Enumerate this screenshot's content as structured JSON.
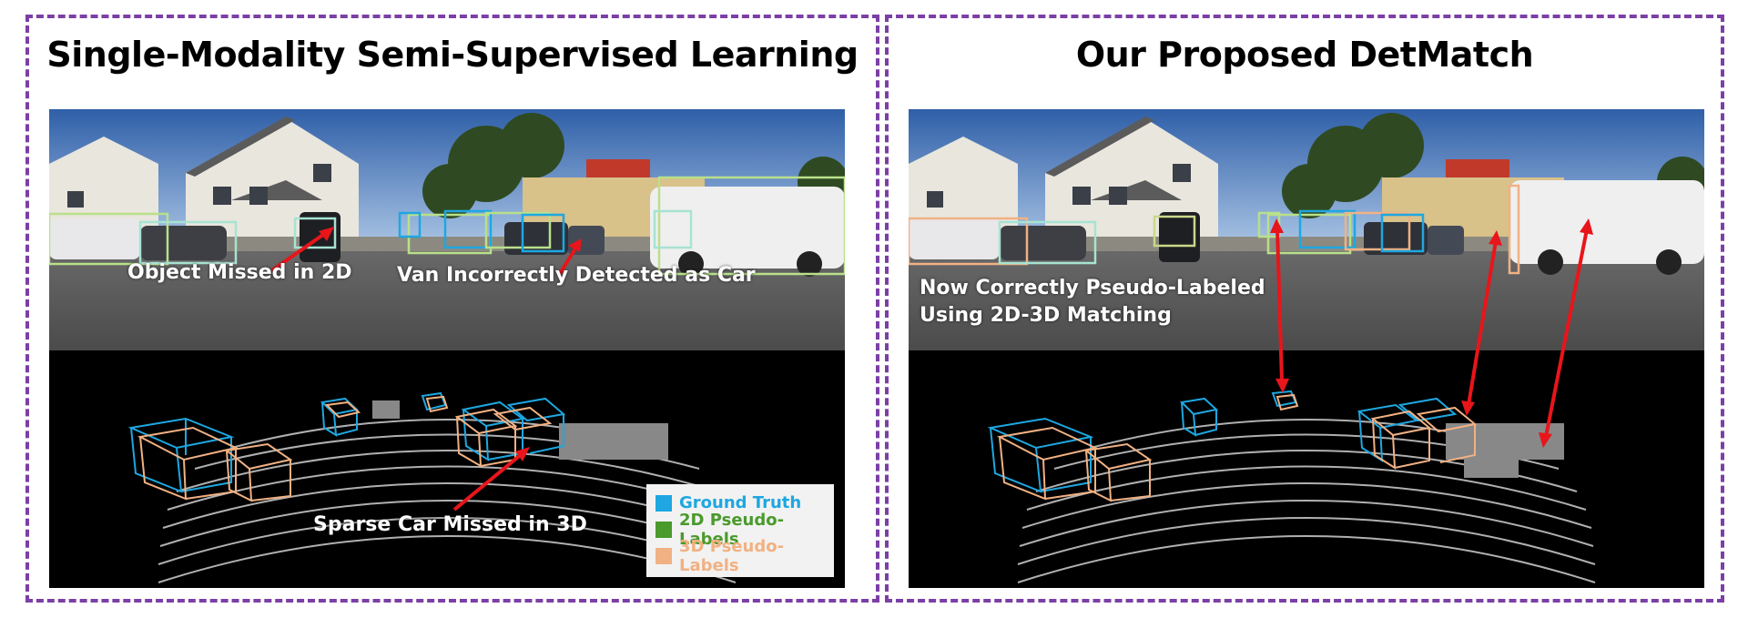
{
  "left_panel": {
    "title": "Single-Modality Semi-Supervised Learning",
    "callouts": {
      "missed_2d": "Object Missed in 2D",
      "van_wrong": "Van Incorrectly Detected as Car",
      "sparse_3d": "Sparse Car Missed in 3D"
    }
  },
  "right_panel": {
    "title": "Our Proposed DetMatch",
    "callout_line1": "Now Correctly Pseudo-Labeled",
    "callout_line2": "Using 2D-3D Matching"
  },
  "legend": {
    "items": [
      {
        "label": "Ground Truth",
        "color": "#1ea7e1"
      },
      {
        "label": "2D Pseudo-Labels",
        "color": "#4a9a2c"
      },
      {
        "label": "3D Pseudo-Labels",
        "color": "#f1b183"
      }
    ]
  },
  "colors": {
    "panel_border": "#7b3fa6",
    "arrow": "#e8151b",
    "ground_truth": "#1ea7e1",
    "pseudo_2d": "#b9e08a",
    "pseudo_3d": "#f1b183"
  }
}
